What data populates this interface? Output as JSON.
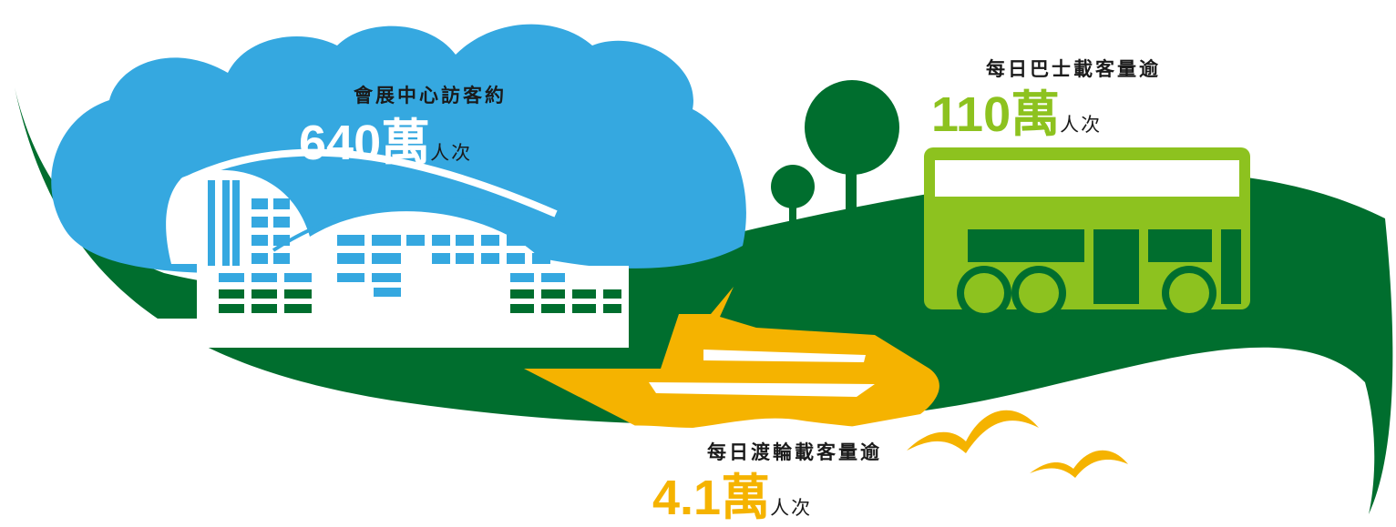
{
  "colors": {
    "leaf_green": "#006e2e",
    "sky_blue": "#35a8e0",
    "bus_green": "#8dc21f",
    "ferry_yellow": "#f5b300",
    "text_dark": "#1a1a1a",
    "white": "#ffffff"
  },
  "stats": {
    "convention": {
      "label": "會展中心訪客約",
      "value": "640",
      "unit_big": "萬",
      "unit_small": "人次",
      "icon": "convention-centre-icon"
    },
    "bus": {
      "label": "每日巴士載客量逾",
      "value": "110",
      "unit_big": "萬",
      "unit_small": "人次",
      "icon": "bus-icon"
    },
    "ferry": {
      "label": "每日渡輪載客量逾",
      "value": "4.1",
      "unit_big": "萬",
      "unit_small": "人次",
      "icon": "ferry-icon"
    }
  }
}
